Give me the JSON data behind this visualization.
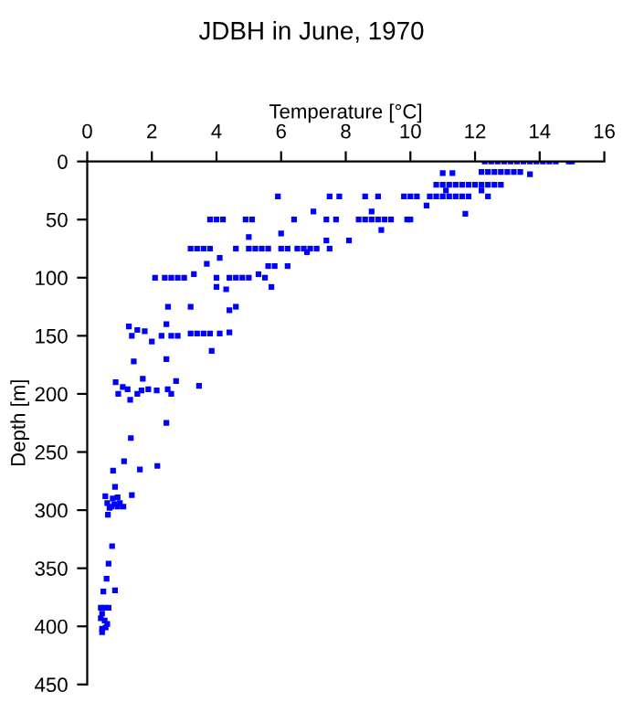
{
  "chart_data": {
    "type": "scatter",
    "title": "JDBH in June, 1970",
    "xlabel": "Temperature [°C]",
    "ylabel": "Depth [m]",
    "xlim": [
      0,
      16
    ],
    "xticks": [
      0,
      2,
      4,
      6,
      8,
      10,
      12,
      14,
      16
    ],
    "ylim": [
      450,
      0
    ],
    "yticks": [
      0,
      50,
      100,
      150,
      200,
      250,
      300,
      350,
      400,
      450
    ],
    "marker": "square",
    "grid": false,
    "legend": false,
    "series": [
      {
        "color": "#0000ff",
        "x": [
          12.3,
          12.5,
          12.7,
          12.9,
          13.1,
          13.3,
          13.5,
          13.7,
          13.9,
          14.1,
          14.3,
          14.5,
          14.9,
          15.0,
          11.0,
          11.3,
          12.2,
          12.4,
          12.6,
          12.8,
          13.0,
          13.2,
          13.4,
          13.7,
          10.8,
          11.0,
          11.2,
          11.4,
          11.6,
          11.8,
          12.0,
          12.2,
          12.4,
          12.6,
          12.8,
          11.1,
          12.2,
          10.6,
          10.8,
          11.0,
          11.2,
          11.4,
          11.6,
          11.8,
          12.4,
          5.9,
          7.5,
          7.8,
          8.6,
          9.0,
          9.8,
          10.0,
          10.2,
          10.5,
          11.7,
          3.8,
          4.0,
          4.2,
          4.9,
          5.1,
          6.4,
          7.4,
          7.7,
          8.4,
          8.6,
          8.8,
          9.0,
          9.2,
          9.4,
          9.9,
          10.0,
          7.0,
          8.8,
          9.1,
          6.0,
          5.0,
          7.4,
          8.1,
          3.2,
          3.4,
          3.6,
          3.8,
          4.6,
          5.0,
          5.2,
          5.4,
          5.6,
          6.0,
          6.2,
          6.5,
          6.7,
          6.9,
          7.1,
          7.5,
          6.8,
          4.1,
          3.7,
          5.6,
          5.8,
          6.2,
          3.3,
          5.3,
          2.1,
          2.4,
          2.6,
          2.8,
          3.0,
          4.0,
          4.4,
          4.6,
          4.8,
          5.0,
          5.5,
          4.0,
          5.7,
          4.3,
          2.5,
          3.2,
          4.6,
          4.4,
          1.29,
          2.45,
          1.55,
          1.78,
          1.38,
          2.0,
          2.3,
          2.6,
          2.8,
          3.2,
          3.4,
          3.6,
          3.8,
          4.1,
          4.4,
          1.44,
          0.88,
          0.96,
          1.1,
          1.25,
          1.33,
          1.55,
          1.68,
          1.72,
          1.89,
          2.15,
          2.45,
          2.49,
          2.6,
          2.75,
          3.46,
          2.45,
          3.85,
          1.35,
          1.14,
          2.17,
          1.63,
          0.8,
          0.86,
          1.38,
          0.56,
          0.62,
          0.69,
          0.64,
          0.79,
          0.94,
          1.01,
          1.12,
          0.94,
          0.75,
          0.84,
          0.77,
          0.66,
          0.6,
          0.86,
          0.5,
          0.42,
          0.54,
          0.66,
          0.46,
          0.42,
          0.54,
          0.62,
          0.46,
          0.57,
          0.46
        ],
        "values": [
          0,
          0,
          0,
          0,
          0,
          0,
          0,
          0,
          0,
          0,
          0,
          0,
          0,
          0,
          10,
          10,
          9,
          9,
          9,
          9,
          9,
          9,
          9,
          11,
          20,
          20,
          20,
          20,
          20,
          20,
          20,
          20,
          20,
          20,
          20,
          25,
          25,
          30,
          30,
          30,
          30,
          30,
          30,
          30,
          30,
          30,
          30,
          30,
          30,
          30,
          30,
          30,
          30,
          38,
          45,
          50,
          50,
          50,
          50,
          50,
          50,
          50,
          50,
          50,
          50,
          50,
          50,
          50,
          50,
          50,
          50,
          43,
          43,
          59,
          62,
          65,
          68,
          68,
          75,
          75,
          75,
          75,
          75,
          75,
          75,
          75,
          75,
          75,
          75,
          75,
          75,
          75,
          75,
          75,
          78,
          83,
          88,
          90,
          90,
          90,
          97,
          97,
          100,
          100,
          100,
          100,
          100,
          100,
          100,
          100,
          100,
          100,
          100,
          108,
          108,
          110,
          125,
          125,
          125,
          128,
          142,
          140,
          145,
          146,
          150,
          155,
          150,
          150,
          150,
          148,
          148,
          148,
          148,
          148,
          147,
          172,
          190,
          200,
          194,
          196,
          205,
          200,
          197,
          187,
          196,
          197,
          170,
          196,
          200,
          189,
          193,
          225,
          163,
          238,
          258,
          262,
          265,
          266,
          280,
          287,
          288,
          294,
          298,
          304,
          290,
          289,
          294,
          297,
          297,
          297,
          295,
          331,
          346,
          359,
          369,
          370,
          384,
          384,
          384,
          389,
          393,
          395,
          398,
          402,
          401,
          405
        ]
      }
    ]
  }
}
